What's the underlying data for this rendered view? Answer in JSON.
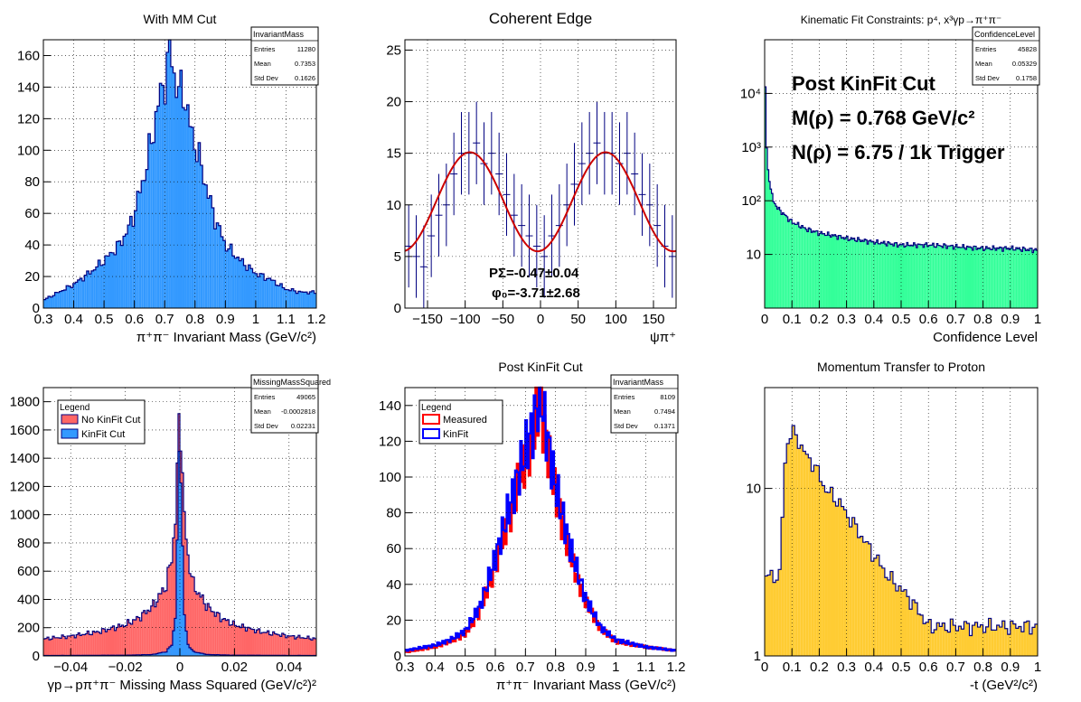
{
  "chart_data": [
    {
      "id": "p1",
      "type": "histogram",
      "title": "With MM Cut",
      "xlabel": "π⁺π⁻ Invariant Mass (GeV/c²)",
      "ylabel": "",
      "xlim": [
        0.3,
        1.2
      ],
      "ylim": [
        0,
        170
      ],
      "xticks": [
        0.3,
        0.4,
        0.5,
        0.6,
        0.7,
        0.8,
        0.9,
        1.0,
        1.1,
        1.2
      ],
      "xticklabels": [
        "0.3",
        "0.4",
        "0.5",
        "0.6",
        "0.7",
        "0.8",
        "0.9",
        "1",
        "1.1",
        "1.2"
      ],
      "yticks": [
        0,
        20,
        40,
        60,
        80,
        100,
        120,
        140,
        160
      ],
      "grid": true,
      "series": [
        {
          "fill": "#3399ff",
          "line": "#000080",
          "x": [
            0.3,
            0.35,
            0.4,
            0.45,
            0.5,
            0.55,
            0.58,
            0.6,
            0.62,
            0.64,
            0.66,
            0.68,
            0.7,
            0.71,
            0.72,
            0.73,
            0.74,
            0.75,
            0.76,
            0.77,
            0.78,
            0.79,
            0.8,
            0.82,
            0.84,
            0.86,
            0.88,
            0.9,
            0.95,
            1.0,
            1.05,
            1.1,
            1.15,
            1.2
          ],
          "y": [
            5,
            10,
            15,
            22,
            30,
            40,
            50,
            60,
            75,
            90,
            110,
            130,
            145,
            155,
            165,
            150,
            140,
            135,
            140,
            130,
            118,
            110,
            105,
            90,
            75,
            60,
            50,
            40,
            30,
            22,
            18,
            12,
            10,
            10
          ]
        }
      ],
      "stats": {
        "title": "InvariantMass",
        "rows": [
          [
            "Entries",
            "11280"
          ],
          [
            "Mean",
            "0.7353"
          ],
          [
            "Std Dev",
            "0.1626"
          ]
        ]
      }
    },
    {
      "id": "p2",
      "type": "errorbar",
      "title": "Coherent Edge",
      "xlabel": "ψπ⁺",
      "ylabel": "",
      "xlim": [
        -180,
        180
      ],
      "ylim": [
        0,
        26
      ],
      "xticks": [
        -150,
        -100,
        -50,
        0,
        50,
        100,
        150
      ],
      "xticklabels": [
        "−150",
        "−100",
        "−50",
        "0",
        "50",
        "100",
        "150"
      ],
      "yticks": [
        0,
        5,
        10,
        15,
        20,
        25
      ],
      "grid": true,
      "fit": {
        "color": "#cc0000",
        "A": 10.3,
        "B": -4.8,
        "phase_deg": -3.71
      },
      "series": [
        {
          "color": "#000080",
          "x": [
            -175,
            -165,
            -155,
            -145,
            -135,
            -125,
            -115,
            -105,
            -95,
            -85,
            -75,
            -65,
            -55,
            -45,
            -35,
            -25,
            -15,
            -5,
            5,
            15,
            25,
            35,
            45,
            55,
            65,
            75,
            85,
            95,
            105,
            115,
            125,
            135,
            145,
            155,
            165,
            175
          ],
          "y": [
            6,
            5,
            4,
            7,
            9,
            10,
            13,
            15,
            15,
            16,
            14,
            15,
            13,
            11,
            9,
            8,
            7,
            6,
            5,
            7,
            8,
            10,
            12,
            14,
            15,
            16,
            15,
            15,
            14,
            15,
            13,
            11,
            10,
            8,
            6,
            5
          ],
          "err": 4
        }
      ],
      "annotations": [
        "PΣ=-0.47±0.04",
        "φ₀=-3.71±2.68"
      ]
    },
    {
      "id": "p3",
      "type": "histogram-log",
      "title": "Kinematic Fit Constraints: p⁴, x³γp→π⁺π⁻",
      "xlabel": "Confidence Level",
      "ylabel": "",
      "xlim": [
        0,
        1
      ],
      "ylim_log": [
        1,
        100000
      ],
      "xticks": [
        0,
        0.1,
        0.2,
        0.3,
        0.4,
        0.5,
        0.6,
        0.7,
        0.8,
        0.9,
        1.0
      ],
      "xticklabels": [
        "0",
        "0.1",
        "0.2",
        "0.3",
        "0.4",
        "0.5",
        "0.6",
        "0.7",
        "0.8",
        "0.9",
        "1"
      ],
      "yticks": [
        10,
        100,
        1000,
        10000
      ],
      "yticklabels": [
        "10",
        "10²",
        "10³",
        "10⁴"
      ],
      "grid": true,
      "series": [
        {
          "fill": "#33ff99",
          "line": "#000080",
          "x": [
            0,
            0.005,
            0.01,
            0.02,
            0.03,
            0.05,
            0.08,
            0.1,
            0.15,
            0.2,
            0.3,
            0.4,
            0.5,
            0.6,
            0.7,
            0.8,
            0.9,
            1.0
          ],
          "y": [
            25000,
            1500,
            400,
            200,
            100,
            70,
            50,
            40,
            30,
            25,
            20,
            17,
            15,
            15,
            14,
            13,
            13,
            12
          ]
        }
      ],
      "stats": {
        "title": "ConfidenceLevel",
        "rows": [
          [
            "Entries",
            "45828"
          ],
          [
            "Mean",
            "0.05329"
          ],
          [
            "Std Dev",
            "0.1758"
          ]
        ]
      },
      "annotations": [
        "Post KinFit Cut",
        "M(ρ) = 0.768 GeV/c²",
        "N(ρ) = 6.75 / 1k Trigger"
      ]
    },
    {
      "id": "p4",
      "type": "histogram",
      "title": "",
      "xlabel": "γp→pπ⁺π⁻ Missing Mass Squared (GeV/c²)²",
      "ylabel": "",
      "xlim": [
        -0.05,
        0.05
      ],
      "ylim": [
        0,
        1900
      ],
      "xticks": [
        -0.04,
        -0.02,
        0,
        0.02,
        0.04
      ],
      "xticklabels": [
        "−0.04",
        "−0.02",
        "0",
        "0.02",
        "0.04"
      ],
      "yticks": [
        0,
        200,
        400,
        600,
        800,
        1000,
        1200,
        1400,
        1600,
        1800
      ],
      "grid": true,
      "series": [
        {
          "name": "No KinFit Cut",
          "fill": "#ff6666",
          "line": "#000080",
          "x": [
            -0.05,
            -0.04,
            -0.03,
            -0.02,
            -0.015,
            -0.01,
            -0.005,
            -0.003,
            -0.0015,
            0,
            0.0015,
            0.003,
            0.005,
            0.01,
            0.015,
            0.02,
            0.03,
            0.04,
            0.05
          ],
          "y": [
            120,
            140,
            170,
            220,
            270,
            350,
            500,
            700,
            1000,
            1830,
            1000,
            700,
            500,
            350,
            270,
            220,
            170,
            140,
            120
          ]
        },
        {
          "name": "KinFit Cut",
          "fill": "#3399ff",
          "line": "#000080",
          "x": [
            -0.05,
            -0.02,
            -0.01,
            -0.005,
            -0.003,
            -0.0015,
            0,
            0.0015,
            0.003,
            0.005,
            0.01,
            0.02,
            0.05
          ],
          "y": [
            3,
            5,
            10,
            30,
            80,
            300,
            1700,
            300,
            80,
            30,
            10,
            5,
            3
          ]
        }
      ],
      "stats": {
        "title": "MissingMassSquared",
        "rows": [
          [
            "Entries",
            "49065"
          ],
          [
            "Mean",
            "-0.0002818"
          ],
          [
            "Std Dev",
            "0.02231"
          ]
        ]
      },
      "legend": {
        "title": "Legend",
        "placement": "top-left"
      }
    },
    {
      "id": "p5",
      "type": "step",
      "title": "Post KinFit Cut",
      "xlabel": "π⁺π⁻ Invariant Mass (GeV/c²)",
      "ylabel": "",
      "xlim": [
        0.3,
        1.2
      ],
      "ylim": [
        0,
        150
      ],
      "xticks": [
        0.3,
        0.4,
        0.5,
        0.6,
        0.7,
        0.8,
        0.9,
        1.0,
        1.1,
        1.2
      ],
      "xticklabels": [
        "0.3",
        "0.4",
        "0.5",
        "0.6",
        "0.7",
        "0.8",
        "0.9",
        "1",
        "1.1",
        "1.2"
      ],
      "yticks": [
        0,
        20,
        40,
        60,
        80,
        100,
        120,
        140
      ],
      "grid": true,
      "series": [
        {
          "name": "Measured",
          "line": "#ff0000",
          "x": [
            0.3,
            0.4,
            0.45,
            0.5,
            0.55,
            0.6,
            0.65,
            0.7,
            0.72,
            0.74,
            0.75,
            0.76,
            0.78,
            0.8,
            0.85,
            0.9,
            0.95,
            1.0,
            1.1,
            1.2
          ],
          "y": [
            2,
            5,
            8,
            12,
            25,
            50,
            80,
            110,
            120,
            135,
            140,
            130,
            110,
            90,
            55,
            30,
            15,
            8,
            5,
            3
          ]
        },
        {
          "name": "KinFit",
          "line": "#0000ff",
          "x": [
            0.3,
            0.4,
            0.45,
            0.5,
            0.55,
            0.6,
            0.65,
            0.7,
            0.72,
            0.74,
            0.75,
            0.76,
            0.78,
            0.8,
            0.85,
            0.9,
            0.95,
            1.0,
            1.1,
            1.2
          ],
          "y": [
            3,
            6,
            9,
            14,
            28,
            55,
            85,
            115,
            125,
            140,
            148,
            135,
            115,
            95,
            60,
            32,
            16,
            9,
            5,
            3
          ]
        }
      ],
      "stats": {
        "title": "InvariantMass",
        "rows": [
          [
            "Entries",
            "8109"
          ],
          [
            "Mean",
            "0.7494"
          ],
          [
            "Std Dev",
            "0.1371"
          ]
        ]
      },
      "legend": {
        "title": "Legend",
        "placement": "top-left"
      }
    },
    {
      "id": "p6",
      "type": "histogram-log",
      "title": "Momentum Transfer to Proton",
      "xlabel": "-t (GeV²/c²)",
      "ylabel": "",
      "xlim": [
        0,
        1
      ],
      "ylim_log": [
        1,
        40
      ],
      "xticks": [
        0,
        0.1,
        0.2,
        0.3,
        0.4,
        0.5,
        0.6,
        0.7,
        0.8,
        0.9,
        1.0
      ],
      "xticklabels": [
        "0",
        "0.1",
        "0.2",
        "0.3",
        "0.4",
        "0.5",
        "0.6",
        "0.7",
        "0.8",
        "0.9",
        "1"
      ],
      "yticks": [
        1,
        10
      ],
      "yticklabels": [
        "1",
        "10"
      ],
      "grid": true,
      "series": [
        {
          "fill": "#ffcc33",
          "line": "#000080",
          "x": [
            0.06,
            0.08,
            0.1,
            0.12,
            0.14,
            0.16,
            0.18,
            0.2,
            0.22,
            0.25,
            0.28,
            0.3,
            0.33,
            0.36,
            0.4,
            0.45,
            0.5,
            0.55,
            0.6
          ],
          "y": [
            3,
            18,
            22,
            20,
            17,
            15,
            14,
            12,
            10,
            9,
            8,
            7,
            6,
            5,
            4,
            3,
            2.5,
            2,
            1.5
          ]
        }
      ]
    }
  ]
}
